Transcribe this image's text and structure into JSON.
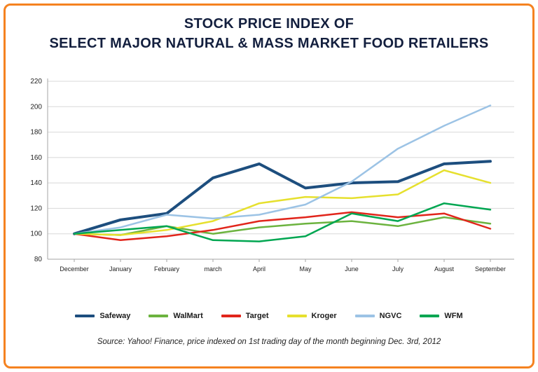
{
  "title": {
    "line1": "STOCK PRICE INDEX OF",
    "line2": "SELECT MAJOR NATURAL & MASS MARKET FOOD RETAILERS"
  },
  "source": "Source: Yahoo! Finance, price indexed on 1st trading day of the month beginning Dec. 3rd, 2012",
  "colors": {
    "frame_border": "#f58220",
    "title_text": "#131f3e",
    "gridline": "#d8d8d8",
    "axis": "#a6a6a6"
  },
  "chart_data": {
    "type": "line",
    "categories": [
      "December",
      "January",
      "February",
      "march",
      "April",
      "May",
      "June",
      "July",
      "August",
      "September"
    ],
    "ylim": [
      80,
      220
    ],
    "yticks": [
      80,
      100,
      120,
      140,
      160,
      180,
      200,
      220
    ],
    "grid": true,
    "legend_position": "bottom",
    "series": [
      {
        "name": "Safeway",
        "color": "#1d4e7e",
        "width": 4,
        "values": [
          100,
          111,
          116,
          144,
          155,
          136,
          140,
          141,
          155,
          157
        ]
      },
      {
        "name": "WalMart",
        "color": "#6cb33f",
        "width": 2.5,
        "values": [
          100,
          99,
          106,
          100,
          105,
          108,
          110,
          106,
          113,
          108
        ]
      },
      {
        "name": "Target",
        "color": "#e1251b",
        "width": 2.5,
        "values": [
          100,
          95,
          98,
          103,
          110,
          113,
          117,
          113,
          116,
          104
        ]
      },
      {
        "name": "Kroger",
        "color": "#e6e02e",
        "width": 2.5,
        "values": [
          100,
          99,
          103,
          110,
          124,
          129,
          128,
          131,
          150,
          140
        ]
      },
      {
        "name": "NGVC",
        "color": "#9cc3e5",
        "width": 2.5,
        "values": [
          100,
          105,
          115,
          112,
          115,
          123,
          141,
          167,
          185,
          201
        ]
      },
      {
        "name": "WFM",
        "color": "#00a651",
        "width": 2.5,
        "values": [
          100,
          103,
          106,
          95,
          94,
          98,
          116,
          110,
          124,
          119
        ]
      }
    ]
  }
}
